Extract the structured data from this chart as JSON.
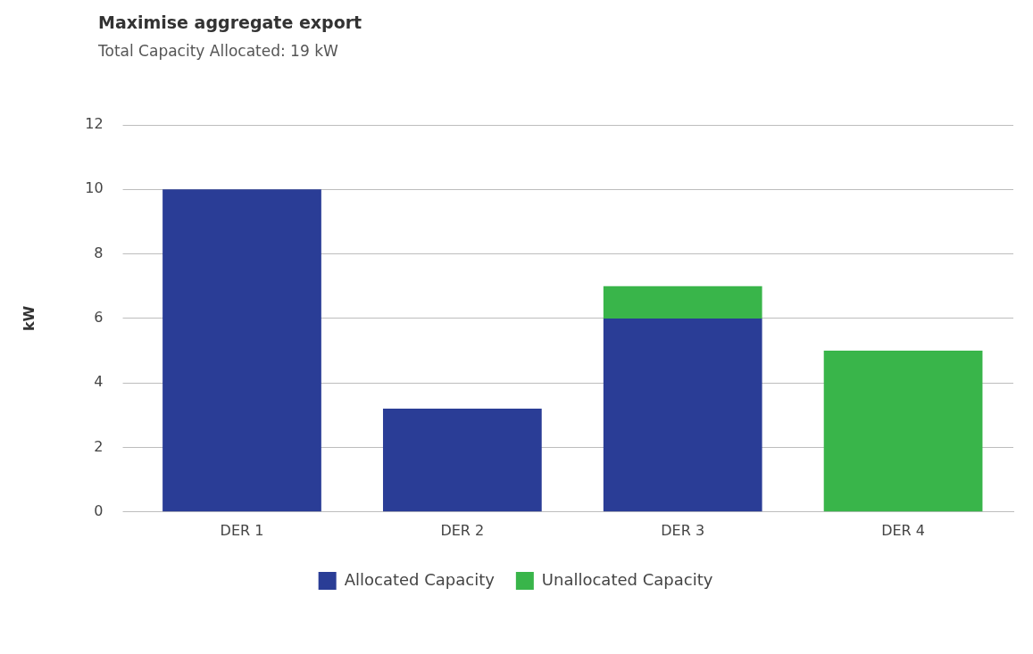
{
  "chart_data": {
    "type": "bar",
    "title": "Maximise aggregate export",
    "subtitle": "Total Capacity Allocated: 19 kW",
    "ylabel": "kW",
    "categories": [
      "DER 1",
      "DER 2",
      "DER 3",
      "DER 4"
    ],
    "stacked": true,
    "series": [
      {
        "name": "Allocated Capacity",
        "color": "#2a3d96",
        "values": [
          10,
          3.2,
          6,
          0
        ]
      },
      {
        "name": "Unallocated Capacity",
        "color": "#39b54a",
        "values": [
          0,
          0,
          1,
          5
        ]
      }
    ],
    "ylim": [
      0,
      12
    ],
    "yticks": [
      0,
      2,
      4,
      6,
      8,
      10,
      12
    ],
    "grid": "y",
    "legend": "bottom"
  }
}
